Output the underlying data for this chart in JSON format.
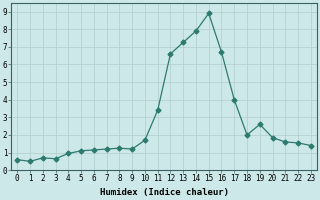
{
  "x": [
    0,
    1,
    2,
    3,
    4,
    5,
    6,
    7,
    8,
    9,
    10,
    11,
    12,
    13,
    14,
    15,
    16,
    17,
    18,
    19,
    20,
    21,
    22,
    23
  ],
  "y": [
    0.6,
    0.5,
    0.7,
    0.65,
    0.95,
    1.1,
    1.15,
    1.2,
    1.25,
    1.2,
    1.7,
    3.4,
    6.6,
    7.25,
    7.9,
    8.9,
    6.7,
    4.0,
    2.0,
    2.6,
    1.85,
    1.6,
    1.55,
    1.4
  ],
  "line_color": "#2d7a6e",
  "marker": "D",
  "marker_size": 2.5,
  "bg_color": "#cde8e8",
  "grid_color": "#b0cccc",
  "xlabel": "Humidex (Indice chaleur)",
  "xlim": [
    -0.5,
    23.5
  ],
  "ylim": [
    0,
    9.5
  ],
  "yticks": [
    0,
    1,
    2,
    3,
    4,
    5,
    6,
    7,
    8,
    9
  ],
  "xticks": [
    0,
    1,
    2,
    3,
    4,
    5,
    6,
    7,
    8,
    9,
    10,
    11,
    12,
    13,
    14,
    15,
    16,
    17,
    18,
    19,
    20,
    21,
    22,
    23
  ],
  "tick_fontsize": 5.5,
  "xlabel_fontsize": 6.5,
  "line_width": 0.9
}
